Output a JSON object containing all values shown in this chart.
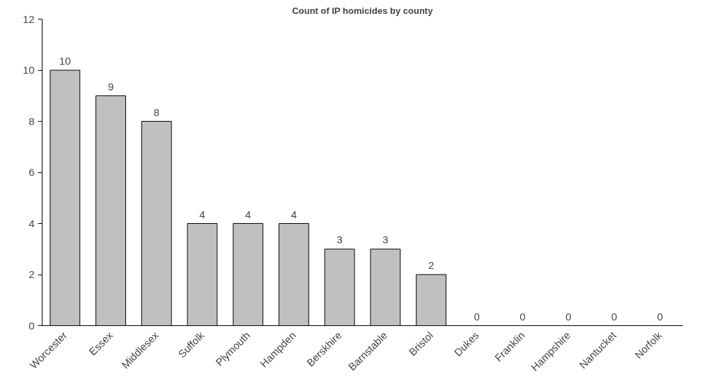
{
  "chart_data": {
    "type": "bar",
    "title": "Count of IP homicides by county",
    "categories": [
      "Worcester",
      "Essex",
      "Middlesex",
      "Suffolk",
      "Plymouth",
      "Hampden",
      "Berskhire",
      "Barnstable",
      "Bristol",
      "Dukes",
      "Franklin",
      "Hampshire",
      "Nantucket",
      "Norfolk"
    ],
    "values": [
      10,
      9,
      8,
      4,
      4,
      4,
      3,
      3,
      2,
      0,
      0,
      0,
      0,
      0
    ],
    "color": "#c0c0c0",
    "ylim": [
      0,
      12
    ],
    "yticks": [
      0,
      2,
      4,
      6,
      8,
      10,
      12
    ],
    "grid": false,
    "data_labels": true
  }
}
